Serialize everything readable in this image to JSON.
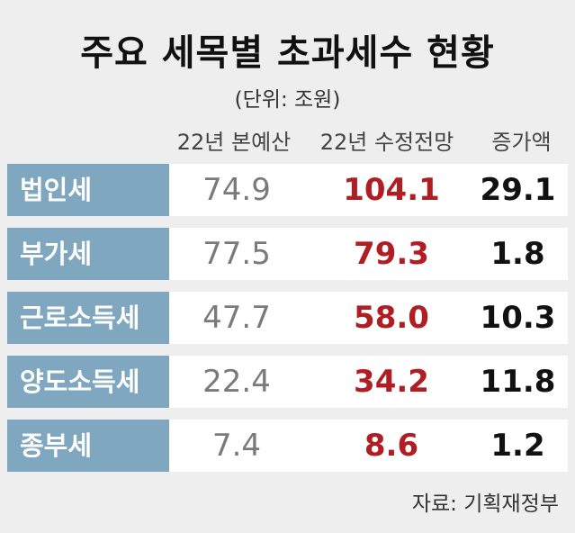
{
  "title": "주요 세목별 초과세수 현황",
  "unit": "(단위: 조원)",
  "source": "자료: 기획재정부",
  "colors": {
    "category_bg": "#7fa7bf",
    "budget_text": "#7a7a7a",
    "revised_text": "#b01e24",
    "increase_text": "#111111",
    "background": "#eeeeee"
  },
  "chart_data": {
    "type": "table",
    "columns": [
      "22년 본예산",
      "22년 수정전망",
      "증가액"
    ],
    "rows": [
      {
        "category": "법인세",
        "values": [
          "74.9",
          "104.1",
          "29.1"
        ]
      },
      {
        "category": "부가세",
        "values": [
          "77.5",
          "79.3",
          "1.8"
        ]
      },
      {
        "category": "근로소득세",
        "values": [
          "47.7",
          "58.0",
          "10.3"
        ]
      },
      {
        "category": "양도소득세",
        "values": [
          "22.4",
          "34.2",
          "11.8"
        ]
      },
      {
        "category": "종부세",
        "values": [
          "7.4",
          "8.6",
          "1.2"
        ]
      }
    ]
  }
}
